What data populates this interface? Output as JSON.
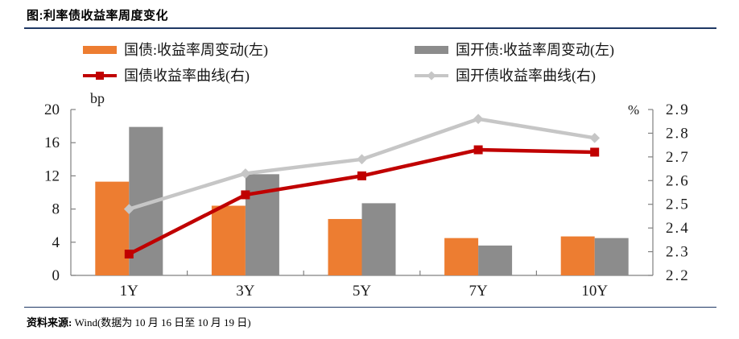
{
  "title": "图:利率债收益率周度变化",
  "source": {
    "label": "资料来源:",
    "text": "Wind(数据为 10 月 16 日至 10 月 19 日)"
  },
  "colors": {
    "divider": "#1f3864",
    "axis": "#808080",
    "treasury_bar": "#ED7D31",
    "cdb_bar": "#8C8C8C",
    "treasury_line": "#C00000",
    "cdb_line": "#C6C6C6"
  },
  "chart_data": {
    "type": "bar",
    "subtype": "combo-bar-line",
    "categories": [
      "1Y",
      "3Y",
      "5Y",
      "7Y",
      "10Y"
    ],
    "left_axis": {
      "label": "bp",
      "min": 0,
      "max": 20,
      "ticks": [
        0,
        4,
        8,
        12,
        16,
        20
      ]
    },
    "right_axis": {
      "label": "%",
      "min": 2.2,
      "max": 2.9,
      "ticks": [
        2.2,
        2.3,
        2.4,
        2.5,
        2.6,
        2.7,
        2.8,
        2.9
      ]
    },
    "grid": false,
    "legend_position": "top",
    "series": [
      {
        "name": "国债:收益率周变动(左)",
        "type": "bar",
        "axis": "left",
        "color": "#ED7D31",
        "values": [
          11.3,
          8.4,
          6.8,
          4.5,
          4.7
        ]
      },
      {
        "name": "国开债:收益率周变动(左)",
        "type": "bar",
        "axis": "left",
        "color": "#8C8C8C",
        "values": [
          17.9,
          12.2,
          8.7,
          3.6,
          4.5
        ]
      },
      {
        "name": "国债收益率曲线(右)",
        "type": "line",
        "axis": "right",
        "color": "#C00000",
        "marker": "square",
        "values": [
          2.29,
          2.54,
          2.62,
          2.73,
          2.72
        ]
      },
      {
        "name": "国开债收益率曲线(右)",
        "type": "line",
        "axis": "right",
        "color": "#C6C6C6",
        "marker": "diamond",
        "values": [
          2.48,
          2.63,
          2.69,
          2.86,
          2.78
        ]
      }
    ]
  }
}
